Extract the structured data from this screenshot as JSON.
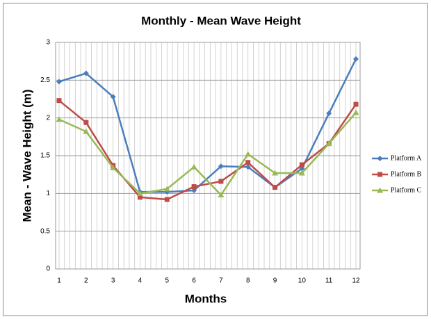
{
  "chart_data": {
    "type": "line",
    "title": "Monthly - Mean Wave Height",
    "x_label": "Months",
    "y_label": "Mean -  Wave Height (m)",
    "categories": [
      "1",
      "2",
      "3",
      "4",
      "5",
      "6",
      "7",
      "8",
      "9",
      "10",
      "11",
      "12"
    ],
    "series": [
      {
        "name": "Platform A",
        "color": "#4a7ebb",
        "marker": "diamond",
        "values": [
          2.48,
          2.59,
          2.28,
          1.02,
          1.02,
          1.04,
          1.36,
          1.35,
          1.08,
          1.33,
          2.06,
          2.78
        ]
      },
      {
        "name": "Platform B",
        "color": "#be4b48",
        "marker": "square",
        "values": [
          2.23,
          1.94,
          1.37,
          0.95,
          0.92,
          1.09,
          1.16,
          1.41,
          1.08,
          1.38,
          1.66,
          2.18
        ]
      },
      {
        "name": "Platform C",
        "color": "#98b954",
        "marker": "triangle",
        "values": [
          1.98,
          1.82,
          1.34,
          1.0,
          1.06,
          1.35,
          0.98,
          1.52,
          1.27,
          1.27,
          1.66,
          2.07
        ]
      }
    ],
    "ylim": [
      0,
      3
    ],
    "yticks": [
      0,
      0.5,
      1,
      1.5,
      2,
      2.5,
      3
    ],
    "grid": true,
    "legend": "right"
  }
}
